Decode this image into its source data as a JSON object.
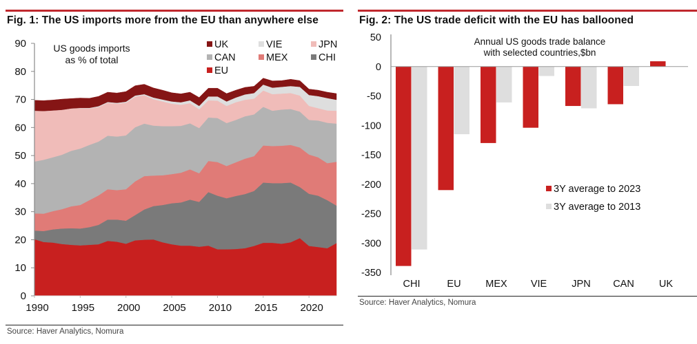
{
  "figures": [
    {
      "title": "Fig. 1: The US imports more from the EU than anywhere else",
      "source": "Source: Haver Analytics, Nomura"
    },
    {
      "title": "Fig. 2: The US trade deficit with the EU has ballooned",
      "source": "Source: Haver Analytics, Nomura"
    }
  ],
  "colors": {
    "accent": "#c0282d"
  },
  "chart_data": [
    {
      "type": "area",
      "stacked": true,
      "title": "Fig. 1: The US imports more from the EU than anywhere else",
      "annotation": "US goods imports\nas % of total",
      "annotation_lines": [
        "US goods imports",
        "as % of total"
      ],
      "xlabel": "",
      "ylabel": "",
      "ylim": [
        0,
        90
      ],
      "yticks": [
        0,
        10,
        20,
        30,
        40,
        50,
        60,
        70,
        80,
        90
      ],
      "xticks": [
        1990,
        1995,
        2000,
        2005,
        2010,
        2015,
        2020
      ],
      "legend_position": "top-right",
      "legend_order": [
        "UK",
        "VIE",
        "JPN",
        "CAN",
        "MEX",
        "CHI",
        "EU"
      ],
      "x": [
        1990,
        1991,
        1992,
        1993,
        1994,
        1995,
        1996,
        1997,
        1998,
        1999,
        2000,
        2001,
        2002,
        2003,
        2004,
        2005,
        2006,
        2007,
        2008,
        2009,
        2010,
        2011,
        2012,
        2013,
        2014,
        2015,
        2016,
        2017,
        2018,
        2019,
        2020,
        2021,
        2022,
        2023
      ],
      "series": [
        {
          "name": "EU",
          "color": "#c8201f",
          "values": [
            20.2,
            19.2,
            19.0,
            18.5,
            18.2,
            18.0,
            18.2,
            18.4,
            19.6,
            19.3,
            18.6,
            19.8,
            20.0,
            20.1,
            19.1,
            18.4,
            17.9,
            17.9,
            17.5,
            17.9,
            16.6,
            16.6,
            16.7,
            17.0,
            17.8,
            18.9,
            18.9,
            18.6,
            19.1,
            20.6,
            17.8,
            17.4,
            17.0,
            18.8
          ]
        },
        {
          "name": "CHI",
          "color": "#7a7a7a",
          "values": [
            3.1,
            3.9,
            4.7,
            5.5,
            5.9,
            6.0,
            6.3,
            6.9,
            7.6,
            7.9,
            8.2,
            9.0,
            10.8,
            11.9,
            13.3,
            14.6,
            15.4,
            16.4,
            16.0,
            19.1,
            19.1,
            18.2,
            18.9,
            19.3,
            19.6,
            21.5,
            21.3,
            21.6,
            21.3,
            18.2,
            18.6,
            18.3,
            17.1,
            13.4
          ]
        },
        {
          "name": "MEX",
          "color": "#e07b77",
          "values": [
            6.1,
            6.2,
            6.5,
            6.9,
            7.8,
            8.4,
            9.6,
            10.5,
            10.8,
            10.5,
            11.2,
            12.0,
            11.9,
            10.9,
            10.6,
            10.4,
            10.6,
            10.8,
            10.2,
            11.1,
            12.0,
            11.5,
            12.0,
            12.6,
            12.4,
            13.2,
            13.2,
            13.3,
            13.4,
            14.1,
            14.0,
            13.7,
            13.2,
            15.6
          ]
        },
        {
          "name": "CAN",
          "color": "#b3b3b3",
          "values": [
            18.5,
            19.2,
            19.2,
            19.4,
            19.8,
            20.1,
            19.7,
            19.2,
            19.1,
            19.1,
            19.2,
            19.3,
            18.7,
            17.8,
            17.5,
            17.1,
            16.7,
            16.4,
            16.1,
            15.5,
            15.7,
            15.3,
            15.1,
            15.1,
            14.9,
            13.8,
            12.6,
            12.9,
            12.8,
            12.8,
            12.3,
            13.1,
            14.4,
            13.6
          ]
        },
        {
          "name": "JPN",
          "color": "#f0bcb9",
          "values": [
            18.1,
            17.4,
            16.7,
            16.0,
            15.1,
            14.4,
            13.0,
            12.3,
            11.7,
            11.7,
            11.6,
            10.9,
            10.1,
            9.4,
            8.8,
            8.0,
            7.5,
            7.2,
            6.7,
            6.1,
            6.2,
            6.1,
            6.3,
            5.9,
            5.6,
            5.8,
            5.9,
            5.7,
            5.7,
            5.7,
            5.0,
            4.4,
            4.4,
            4.6
          ]
        },
        {
          "name": "VIE",
          "color": "#dedede",
          "values": [
            0.0,
            0.0,
            0.0,
            0.0,
            0.0,
            0.1,
            0.2,
            0.3,
            0.3,
            0.3,
            0.4,
            0.4,
            0.4,
            0.6,
            0.7,
            0.8,
            0.9,
            1.0,
            1.2,
            1.4,
            1.5,
            1.6,
            1.7,
            1.9,
            2.0,
            2.1,
            2.3,
            2.4,
            2.5,
            3.1,
            3.9,
            4.3,
            4.4,
            3.9
          ]
        },
        {
          "name": "UK",
          "color": "#851515",
          "values": [
            3.7,
            3.7,
            3.7,
            3.8,
            3.5,
            3.5,
            3.4,
            3.5,
            3.5,
            3.5,
            3.6,
            3.5,
            3.5,
            3.4,
            3.3,
            3.1,
            3.0,
            2.9,
            3.0,
            2.9,
            2.9,
            2.8,
            2.6,
            2.5,
            2.4,
            2.3,
            2.4,
            2.2,
            2.4,
            2.2,
            2.1,
            2.1,
            2.1,
            2.2
          ]
        }
      ]
    },
    {
      "type": "bar",
      "title": "Fig. 2: The US trade deficit with the EU has ballooned",
      "annotation_lines": [
        "Annual US goods trade balance",
        "with selected countries,$bn"
      ],
      "xlabel": "",
      "ylabel": "",
      "ylim": [
        -350,
        50
      ],
      "yticks": [
        50,
        0,
        -50,
        -100,
        -150,
        -200,
        -250,
        -300,
        -350
      ],
      "categories": [
        "CHI",
        "EU",
        "MEX",
        "VIE",
        "JPN",
        "CAN",
        "UK"
      ],
      "legend_position": "bottom-right",
      "series": [
        {
          "name": "3Y average to 2023",
          "color": "#c8201f",
          "values": [
            -339,
            -210,
            -130,
            -104,
            -67,
            -64,
            9
          ]
        },
        {
          "name": "3Y average to 2013",
          "color": "#dedede",
          "values": [
            -311,
            -115,
            -61,
            -16,
            -71,
            -33,
            0
          ]
        }
      ]
    }
  ]
}
